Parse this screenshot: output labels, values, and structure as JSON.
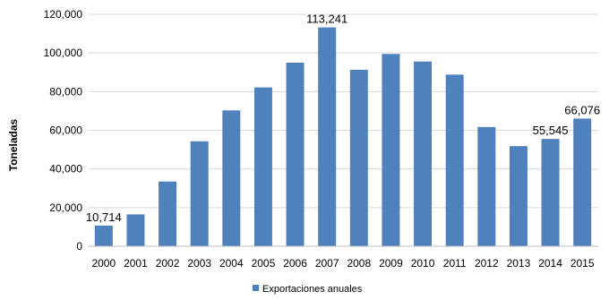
{
  "chart_data": {
    "type": "bar",
    "ylabel": "Toneladas",
    "xlabel": "",
    "categories": [
      "2000",
      "2001",
      "2002",
      "2003",
      "2004",
      "2005",
      "2006",
      "2007",
      "2008",
      "2009",
      "2010",
      "2011",
      "2012",
      "2013",
      "2014",
      "2015"
    ],
    "series": [
      {
        "name": "Exportaciones anuales",
        "color": "#4f81bd",
        "values": [
          10714,
          16500,
          33500,
          54300,
          70300,
          82200,
          95000,
          113241,
          91300,
          99500,
          95600,
          88800,
          61700,
          51800,
          55545,
          66076
        ]
      }
    ],
    "data_labels": [
      {
        "index": 0,
        "text": "10,714"
      },
      {
        "index": 7,
        "text": "113,241"
      },
      {
        "index": 14,
        "text": "55,545"
      },
      {
        "index": 15,
        "text": "66,076"
      }
    ],
    "ylim": [
      0,
      120000
    ],
    "yticks": [
      0,
      20000,
      40000,
      60000,
      80000,
      100000,
      120000
    ],
    "ytick_labels": [
      "0",
      "20,000",
      "40,000",
      "60,000",
      "80,000",
      "100,000",
      "120,000"
    ],
    "grid": true,
    "legend_position": "bottom"
  }
}
